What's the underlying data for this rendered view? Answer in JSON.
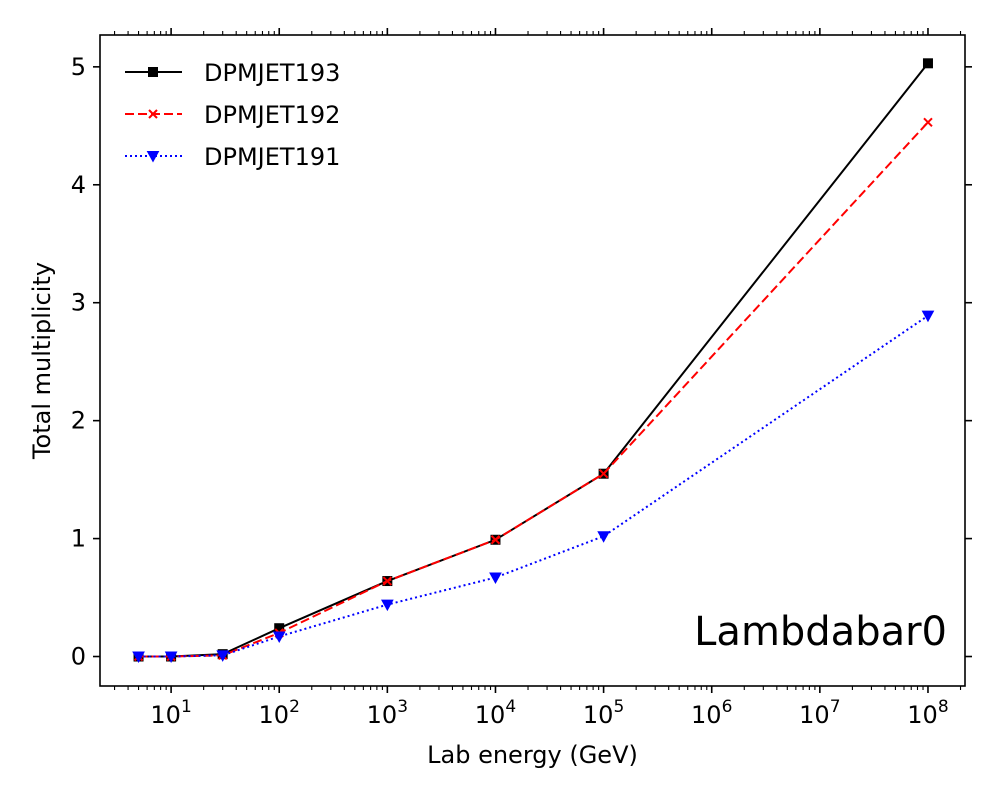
{
  "chart_data": {
    "type": "line",
    "xlabel": "Lab energy (GeV)",
    "ylabel": "Total multiplicity",
    "xscale": "log",
    "xlim": [
      2.2,
      220000000
    ],
    "ylim": [
      -0.25,
      5.27
    ],
    "x": [
      5,
      10,
      30,
      100,
      1000,
      10000,
      100000,
      100000000
    ],
    "x_ticks": [
      10,
      100,
      1000,
      10000,
      100000,
      1000000,
      10000000,
      100000000
    ],
    "x_tick_labels": [
      {
        "base": "10",
        "exp": "1"
      },
      {
        "base": "10",
        "exp": "2"
      },
      {
        "base": "10",
        "exp": "3"
      },
      {
        "base": "10",
        "exp": "4"
      },
      {
        "base": "10",
        "exp": "5"
      },
      {
        "base": "10",
        "exp": "6"
      },
      {
        "base": "10",
        "exp": "7"
      },
      {
        "base": "10",
        "exp": "8"
      }
    ],
    "y_ticks": [
      0,
      1,
      2,
      3,
      4,
      5
    ],
    "y_tick_labels": [
      "0",
      "1",
      "2",
      "3",
      "4",
      "5"
    ],
    "grid": false,
    "legend_position": "top-left",
    "annotation": "Lambdabar0",
    "annotation_position": "bottom-right",
    "series": [
      {
        "name": "DPMJET193",
        "color": "#000000",
        "linestyle": "solid",
        "marker": "square",
        "values": [
          0.0,
          0.0,
          0.02,
          0.24,
          0.64,
          0.99,
          1.55,
          5.03
        ]
      },
      {
        "name": "DPMJET192",
        "color": "#ff0000",
        "linestyle": "dashed",
        "marker": "x",
        "values": [
          0.0,
          0.0,
          0.01,
          0.2,
          0.64,
          0.99,
          1.55,
          4.53
        ]
      },
      {
        "name": "DPMJET191",
        "color": "#0000ff",
        "linestyle": "dotted",
        "marker": "triangle-down",
        "values": [
          0.0,
          0.0,
          0.01,
          0.17,
          0.44,
          0.67,
          1.02,
          2.89
        ]
      }
    ]
  }
}
